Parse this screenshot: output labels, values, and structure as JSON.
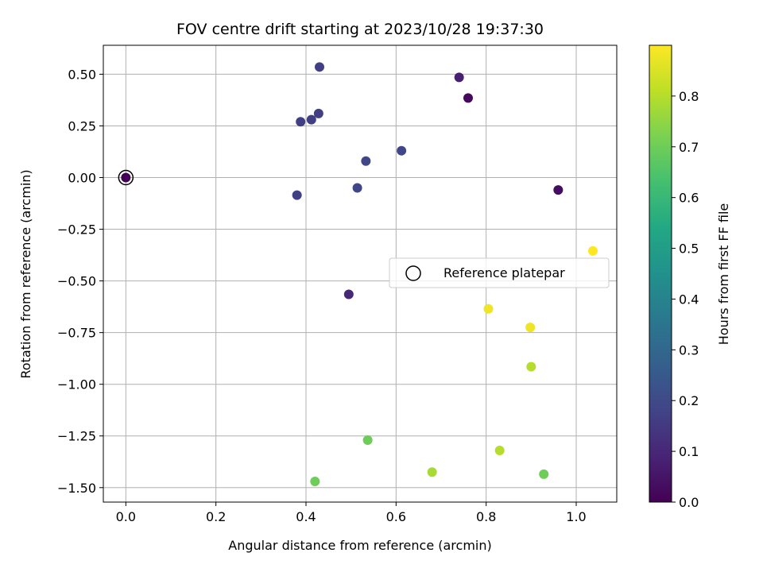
{
  "chart_data": {
    "type": "scatter",
    "title": "FOV centre drift starting at 2023/10/28 19:37:30",
    "xlabel": "Angular distance from reference (arcmin)",
    "ylabel": "Rotation from reference (arcmin)",
    "xlim": [
      -0.05,
      1.09
    ],
    "ylim": [
      -1.57,
      0.64
    ],
    "x_ticks": [
      "0.0",
      "0.2",
      "0.4",
      "0.6",
      "0.8",
      "1.0"
    ],
    "y_ticks": [
      "0.50",
      "0.25",
      "0.00",
      "−0.25",
      "−0.50",
      "−0.75",
      "−1.00",
      "−1.25",
      "−1.50"
    ],
    "grid": true,
    "legend": {
      "placement": "center-right",
      "label": "Reference platepar"
    },
    "reference_point": {
      "x": 0.0,
      "y": 0.0
    },
    "colorbar": {
      "label": "Hours from first FF file",
      "colormap": "viridis",
      "range": [
        0.0,
        0.9
      ],
      "ticks": [
        "0.0",
        "0.1",
        "0.2",
        "0.3",
        "0.4",
        "0.5",
        "0.6",
        "0.7",
        "0.8"
      ]
    },
    "points": [
      {
        "x": 0.0,
        "y": 0.0,
        "hours": 0.0
      },
      {
        "x": 0.76,
        "y": 0.385,
        "hours": 0.02
      },
      {
        "x": 0.96,
        "y": -0.06,
        "hours": 0.03
      },
      {
        "x": 0.74,
        "y": 0.485,
        "hours": 0.08
      },
      {
        "x": 0.495,
        "y": -0.565,
        "hours": 0.1
      },
      {
        "x": 0.43,
        "y": 0.535,
        "hours": 0.17
      },
      {
        "x": 0.388,
        "y": 0.27,
        "hours": 0.17
      },
      {
        "x": 0.412,
        "y": 0.28,
        "hours": 0.17
      },
      {
        "x": 0.428,
        "y": 0.31,
        "hours": 0.17
      },
      {
        "x": 0.38,
        "y": -0.085,
        "hours": 0.17
      },
      {
        "x": 0.533,
        "y": 0.08,
        "hours": 0.19
      },
      {
        "x": 0.612,
        "y": 0.13,
        "hours": 0.19
      },
      {
        "x": 0.514,
        "y": -0.05,
        "hours": 0.19
      },
      {
        "x": 0.537,
        "y": -1.27,
        "hours": 0.7
      },
      {
        "x": 0.42,
        "y": -1.47,
        "hours": 0.7
      },
      {
        "x": 0.928,
        "y": -1.435,
        "hours": 0.7
      },
      {
        "x": 0.68,
        "y": -1.425,
        "hours": 0.78
      },
      {
        "x": 0.83,
        "y": -1.32,
        "hours": 0.8
      },
      {
        "x": 0.9,
        "y": -0.915,
        "hours": 0.8
      },
      {
        "x": 0.805,
        "y": -0.635,
        "hours": 0.88
      },
      {
        "x": 0.898,
        "y": -0.725,
        "hours": 0.88
      },
      {
        "x": 1.037,
        "y": -0.355,
        "hours": 0.9
      }
    ]
  },
  "colors": {
    "grid": "#b0b0b0",
    "axis": "#000000",
    "reference_edge": "#000000",
    "viridis": [
      "#440154",
      "#482475",
      "#414487",
      "#355f8d",
      "#2a788e",
      "#21918c",
      "#22a884",
      "#44bf70",
      "#7ad151",
      "#bddf26",
      "#fde725"
    ]
  }
}
